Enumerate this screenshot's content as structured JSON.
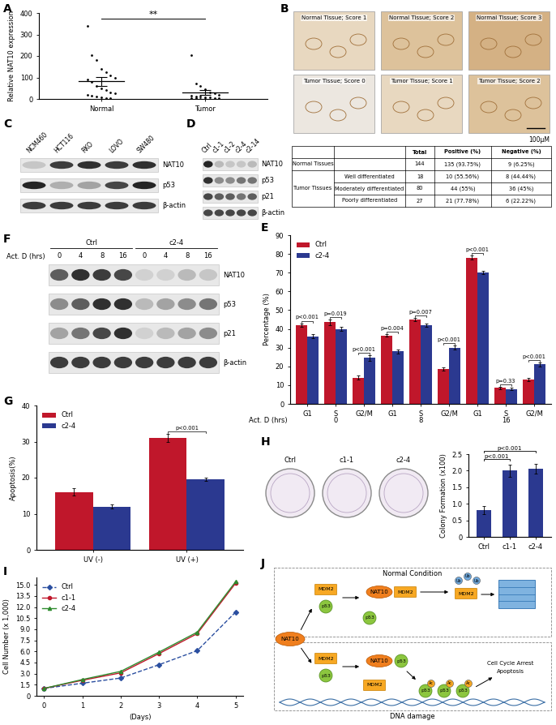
{
  "panel_labels": [
    "A",
    "B",
    "C",
    "D",
    "E",
    "F",
    "G",
    "H",
    "I",
    "J"
  ],
  "chart_data": [
    {
      "type": "strip",
      "categories": [
        "Normal",
        "Tumor"
      ],
      "values": [
        [
          340,
          205,
          180,
          140,
          125,
          110,
          100,
          92,
          80,
          62,
          48,
          40,
          32,
          25,
          20,
          15,
          10,
          7,
          4,
          2
        ],
        [
          205,
          72,
          60,
          45,
          32,
          26,
          20,
          16,
          12,
          10,
          8,
          6,
          5,
          3,
          2,
          2,
          1,
          1
        ]
      ],
      "means": [
        82,
        29
      ],
      "errors": [
        20,
        11
      ],
      "color": "#000000",
      "y_label": "Relative NAT10 expression",
      "ylim": [
        0,
        400
      ],
      "yticks": [
        0,
        100,
        200,
        300,
        400
      ],
      "significance": "**"
    },
    {
      "type": "bar",
      "categories": [
        "G1",
        "S",
        "G2/M",
        "G1",
        "S",
        "G2/M",
        "G1",
        "S",
        "G2/M"
      ],
      "groups": [
        0,
        8,
        16
      ],
      "group_label": "Act. D (hrs)",
      "series": [
        {
          "name": "Ctrl",
          "color": "#c0172b",
          "values": [
            42,
            43.5,
            14,
            36.5,
            45,
            18.5,
            78,
            8.5,
            13
          ],
          "errors": [
            1,
            1.5,
            1,
            0.8,
            0.8,
            0.8,
            1,
            0.5,
            0.8
          ]
        },
        {
          "name": "c2-4",
          "color": "#2b3990",
          "values": [
            36,
            40,
            24.5,
            28,
            42,
            30,
            70,
            8,
            21
          ],
          "errors": [
            1,
            1.2,
            1.5,
            1,
            1,
            1,
            0.8,
            0.5,
            1
          ]
        }
      ],
      "annotations": [
        "p<0.001",
        "p=0.019",
        "p<0.001",
        "p=0.004",
        "p=0.007",
        "p<0.001",
        "p<0.001",
        "p=0.33",
        "p<0.001"
      ],
      "y_label": "Percentage (%)",
      "ylim": [
        0,
        90
      ],
      "yticks": [
        0,
        10,
        20,
        30,
        40,
        50,
        60,
        70,
        80,
        90
      ],
      "legend": "upper left"
    },
    {
      "type": "bar",
      "categories": [
        "UV (-)",
        "UV (+)"
      ],
      "series": [
        {
          "name": "Ctrl",
          "color": "#c0172b",
          "values": [
            16,
            31
          ],
          "errors": [
            1,
            1.2
          ]
        },
        {
          "name": "c2-4",
          "color": "#2b3990",
          "values": [
            12,
            19.5
          ],
          "errors": [
            0.6,
            0.5
          ]
        }
      ],
      "annotations": [
        null,
        "p<0.001"
      ],
      "y_label": "Apoptosis(%)",
      "ylim": [
        0,
        40
      ],
      "yticks": [
        0,
        10,
        20,
        30,
        40
      ],
      "legend": "upper left"
    },
    {
      "type": "bar",
      "categories": [
        "Ctrl",
        "c1-1",
        "c2-4"
      ],
      "values": [
        0.8,
        2.0,
        2.05
      ],
      "errors": [
        0.12,
        0.18,
        0.15
      ],
      "color": "#2b3990",
      "comparisons": [
        {
          "pair": [
            "Ctrl",
            "c1-1"
          ],
          "label": "p<0.001"
        },
        {
          "pair": [
            "Ctrl",
            "c2-4"
          ],
          "label": "p<0.001"
        }
      ],
      "y_label": "Colony Formation (x100)",
      "ylim": [
        0,
        2.5
      ],
      "yticks": [
        0,
        0.5,
        1.0,
        1.5,
        2.0,
        2.5
      ]
    },
    {
      "type": "line",
      "x": [
        0,
        1,
        2,
        3,
        4,
        5
      ],
      "series": [
        {
          "name": "Ctrl",
          "color": "#2b4fa0",
          "marker": "diamond",
          "line_style": "dashed",
          "values": [
            1,
            1.7,
            2.4,
            4.2,
            6.1,
            11.3
          ]
        },
        {
          "name": "c1-1",
          "color": "#c0172b",
          "marker": "circle",
          "line_style": "solid",
          "values": [
            1,
            2.1,
            3.1,
            5.7,
            8.4,
            15.2
          ]
        },
        {
          "name": "c2-4",
          "color": "#2e8b2e",
          "marker": "triangle",
          "line_style": "solid",
          "values": [
            1,
            2.2,
            3.3,
            5.9,
            8.6,
            15.4
          ]
        }
      ],
      "x_label": "(Days)",
      "y_label": "Cell Number (x 1,000)",
      "xlim": [
        -0.2,
        5.2
      ],
      "xticks": [
        0,
        1,
        2,
        3,
        4,
        5
      ],
      "ylim": [
        0,
        16
      ],
      "yticks": [
        0,
        1.5,
        3.0,
        4.5,
        6.0,
        7.5,
        9.0,
        10.5,
        12.0,
        13.5,
        15.0
      ],
      "legend": "upper left"
    }
  ],
  "ihc": {
    "captions": [
      "Normal Tissue; Score 1",
      "Normal Tissue; Score 2",
      "Normal Tissue; Score 3",
      "Tumor Tissue; Score 0",
      "Tumor Tissue; Score 1",
      "Tumor Tissue; Score 2"
    ],
    "scale_bar": "100μM"
  },
  "table": {
    "header": [
      null,
      null,
      "Total",
      "Positive (%)",
      "Negative (%)"
    ],
    "rows": [
      [
        "Normal Tissues",
        null,
        144,
        "135 (93.75%)",
        "9 (6.25%)"
      ],
      [
        "Tumor Tissues",
        "Well differentiated",
        18,
        "10 (55.56%)",
        "8 (44.44%)"
      ],
      [
        null,
        "Moderately differentiated",
        80,
        "44 (55%)",
        "36 (45%)"
      ],
      [
        null,
        "Poorly differentiated",
        27,
        "21 (77.78%)",
        "6 (22.22%)"
      ]
    ]
  },
  "blots": [
    {
      "lanes": [
        "NCM460",
        "HCT116",
        "RKO",
        "LOVO",
        "SW480"
      ],
      "rows": [
        {
          "name": "NAT10",
          "intensity": [
            0.25,
            0.85,
            0.9,
            0.85,
            0.9
          ]
        },
        {
          "name": "p53",
          "intensity": [
            0.95,
            0.35,
            0.4,
            0.8,
            0.95
          ]
        },
        {
          "name": "β-actin",
          "intensity": [
            0.85,
            0.85,
            0.85,
            0.85,
            0.85
          ]
        }
      ]
    },
    {
      "lanes": [
        "Ctrl",
        "c1-1",
        "c1-2",
        "c2-4",
        "c2-14"
      ],
      "rows": [
        {
          "name": "NAT10",
          "intensity": [
            0.95,
            0.3,
            0.25,
            0.25,
            0.3
          ]
        },
        {
          "name": "p53",
          "intensity": [
            0.9,
            0.5,
            0.5,
            0.6,
            0.6
          ]
        },
        {
          "name": "p21",
          "intensity": [
            0.8,
            0.7,
            0.7,
            0.6,
            0.7
          ]
        },
        {
          "name": "β-actin",
          "intensity": [
            0.8,
            0.8,
            0.8,
            0.8,
            0.8
          ]
        }
      ]
    },
    {
      "lane_groups": [
        "Ctrl",
        "c2-4"
      ],
      "lane_label": "Act. D (hrs)",
      "lanes": [
        0,
        4,
        8,
        16,
        0,
        4,
        8,
        16
      ],
      "rows": [
        {
          "name": "NAT10",
          "intensity": [
            0.7,
            0.9,
            0.85,
            0.8,
            0.2,
            0.2,
            0.3,
            0.25
          ]
        },
        {
          "name": "p53",
          "intensity": [
            0.5,
            0.7,
            0.9,
            0.9,
            0.3,
            0.4,
            0.5,
            0.6
          ]
        },
        {
          "name": "p21",
          "intensity": [
            0.4,
            0.6,
            0.8,
            0.9,
            0.2,
            0.3,
            0.4,
            0.5
          ]
        },
        {
          "name": "β-actin",
          "intensity": [
            0.85,
            0.85,
            0.85,
            0.85,
            0.85,
            0.85,
            0.85,
            0.85
          ]
        }
      ]
    }
  ],
  "colony_plates": {
    "labels": [
      "Ctrl",
      "c1-1",
      "c2-4"
    ]
  },
  "diagram": {
    "title_top": "Normal Condition",
    "title_bottom": "DNA damage",
    "nodes": {
      "nat10": "NAT10",
      "mdm2": "MDM2",
      "p53": "p53",
      "ub": "Ub",
      "ac": "Ac"
    },
    "outcome": [
      "Cell Cycle Arrest",
      "Apoptosis"
    ]
  }
}
